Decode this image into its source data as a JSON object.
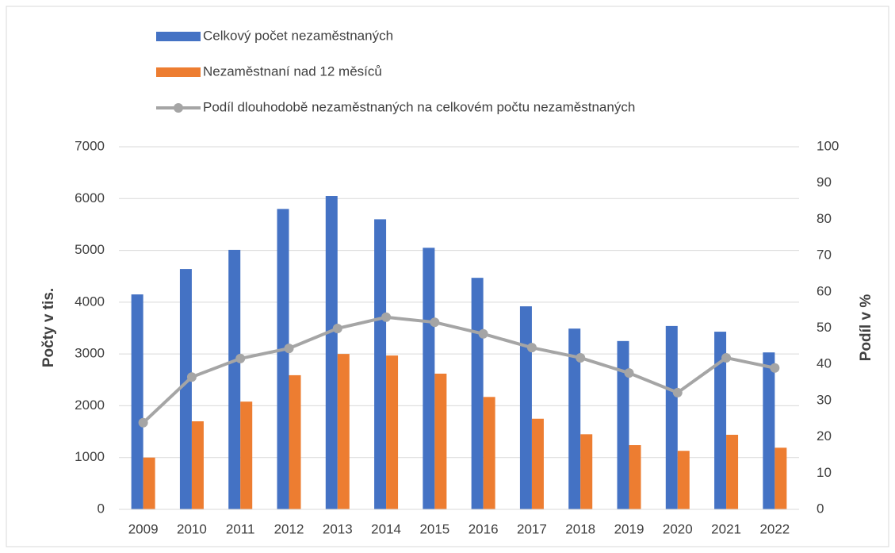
{
  "chart_data": {
    "type": "bar",
    "categories": [
      "2009",
      "2010",
      "2011",
      "2012",
      "2013",
      "2014",
      "2015",
      "2016",
      "2017",
      "2018",
      "2019",
      "2020",
      "2021",
      "2022"
    ],
    "y_label": "Počty v tis.",
    "y2_label": "Podíl v %",
    "ylim": [
      0,
      7000
    ],
    "yticks": [
      0,
      1000,
      2000,
      3000,
      4000,
      5000,
      6000,
      7000
    ],
    "y2lim": [
      0,
      100
    ],
    "y2ticks": [
      0,
      10,
      20,
      30,
      40,
      50,
      60,
      70,
      80,
      90,
      100
    ],
    "grid": true,
    "legend": "top",
    "series": [
      {
        "name": "Celkový počet nezaměstnaných",
        "type": "bar",
        "color": "#4472c4",
        "values": [
          4150,
          4640,
          5010,
          5800,
          6050,
          5600,
          5050,
          4470,
          3920,
          3490,
          3250,
          3540,
          3430,
          3030
        ]
      },
      {
        "name": "Nezaměstnaní nad 12 měsíců",
        "type": "bar",
        "color": "#ed7d31",
        "values": [
          1000,
          1700,
          2080,
          2590,
          3000,
          2970,
          2620,
          2170,
          1750,
          1450,
          1240,
          1130,
          1440,
          1190
        ]
      },
      {
        "name": "Podíl dlouhodobě nezaměstnaných na celkovém počtu nezaměstnaných",
        "type": "line",
        "axis": "y2",
        "color": "#a5a5a5",
        "values": [
          23.9,
          36.5,
          41.6,
          44.4,
          49.9,
          53.0,
          51.6,
          48.4,
          44.6,
          41.8,
          37.6,
          32.2,
          41.8,
          39.0
        ]
      }
    ]
  }
}
